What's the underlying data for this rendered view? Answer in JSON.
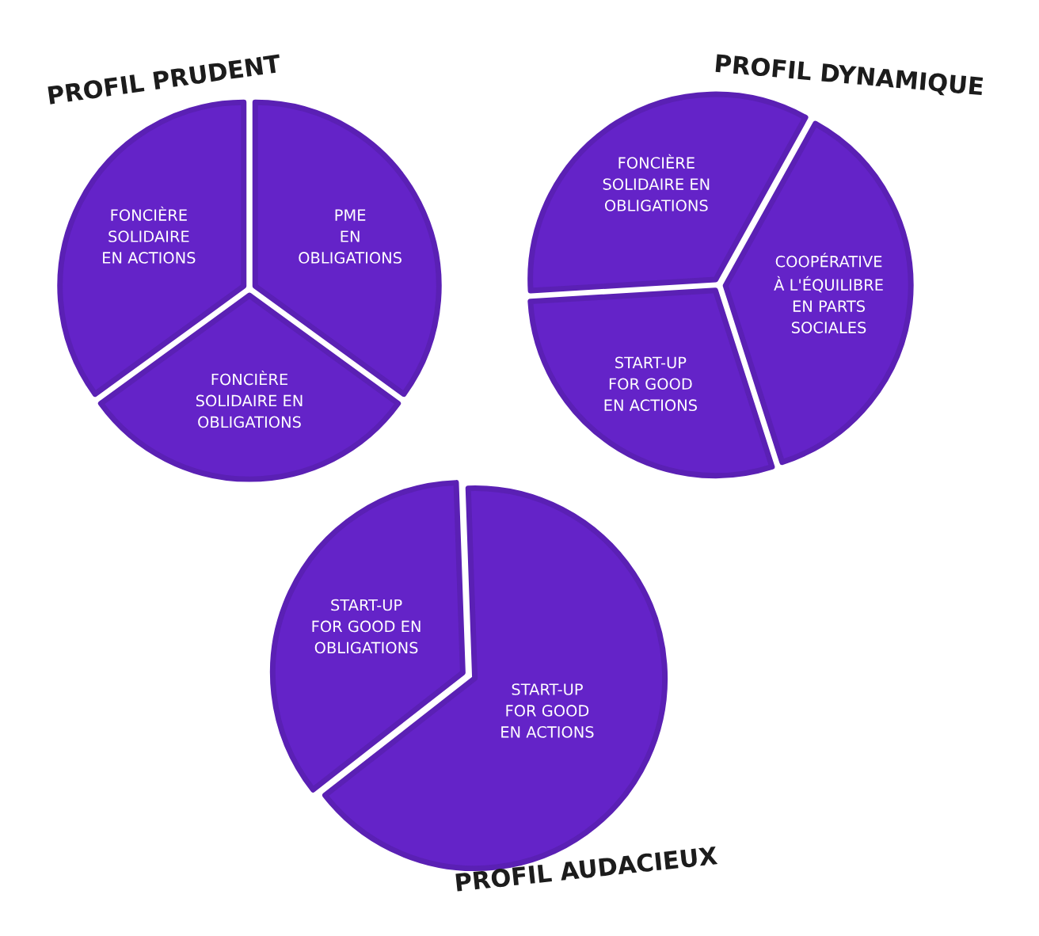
{
  "chart_data": [
    {
      "type": "pie",
      "title": "PROFIL PRUDENT",
      "categories": [
        "FONCIÈRE\nSOLIDAIRE\nEN ACTIONS",
        "FONCIÈRE\nSOLIDAIRE EN\nOBLIGATIONS",
        "PME\nEN\nOBLIGATIONS"
      ],
      "values": [
        35,
        30,
        35
      ],
      "colors": [
        "#6423c8",
        "#6423c8",
        "#6423c8"
      ]
    },
    {
      "type": "pie",
      "title": "PROFIL DYNAMIQUE",
      "categories": [
        "FONCIÈRE\nSOLIDAIRE EN\nOBLIGATIONS",
        "START-UP\nFOR GOOD\nEN ACTIONS",
        "COOPÉRATIVE\nÀ L'ÉQUILIBRE\nEN PARTS\nSOCIALES"
      ],
      "values": [
        34,
        29,
        37
      ],
      "colors": [
        "#6423c8",
        "#6423c8",
        "#6423c8"
      ]
    },
    {
      "type": "pie",
      "title": "PROFIL AUDACIEUX",
      "categories": [
        "START-UP\nFOR GOOD EN\nOBLIGATIONS",
        "START-UP\nFOR GOOD\nEN ACTIONS"
      ],
      "values": [
        35,
        65
      ],
      "colors": [
        "#6423c8",
        "#6423c8"
      ]
    }
  ]
}
